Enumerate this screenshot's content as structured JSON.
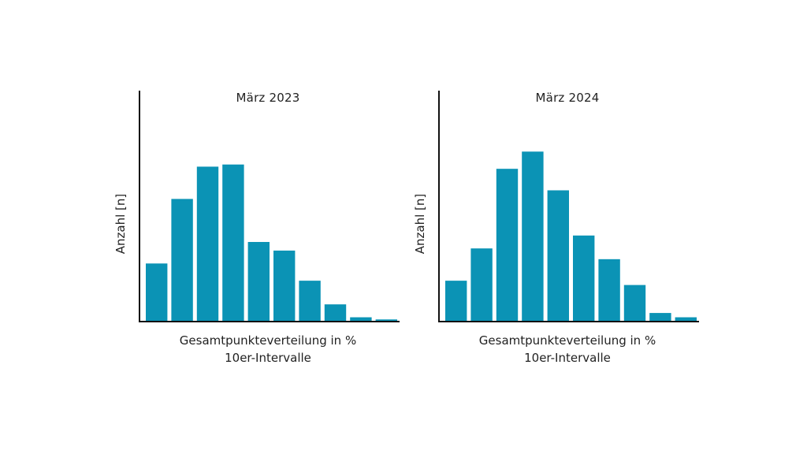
{
  "colors": {
    "bar": "#0b93b5",
    "axis": "#111111"
  },
  "chart_data": [
    {
      "type": "bar",
      "title": "März 2023",
      "ylabel": "Anzahl [n]",
      "xlabel_line1": "Gesamtpunkteverteilung in %",
      "xlabel_line2": "10er-Intervalle",
      "values": [
        27,
        57,
        72,
        73,
        37,
        33,
        19,
        8,
        2,
        1
      ],
      "ylim": [
        0,
        100
      ],
      "grid": false
    },
    {
      "type": "bar",
      "title": "März 2024",
      "ylabel": "Anzahl [n]",
      "xlabel_line1": "Gesamtpunkteverteilung in %",
      "xlabel_line2": "10er-Intervalle",
      "values": [
        19,
        34,
        71,
        79,
        61,
        40,
        29,
        17,
        4,
        2
      ],
      "ylim": [
        0,
        100
      ],
      "grid": false
    }
  ]
}
